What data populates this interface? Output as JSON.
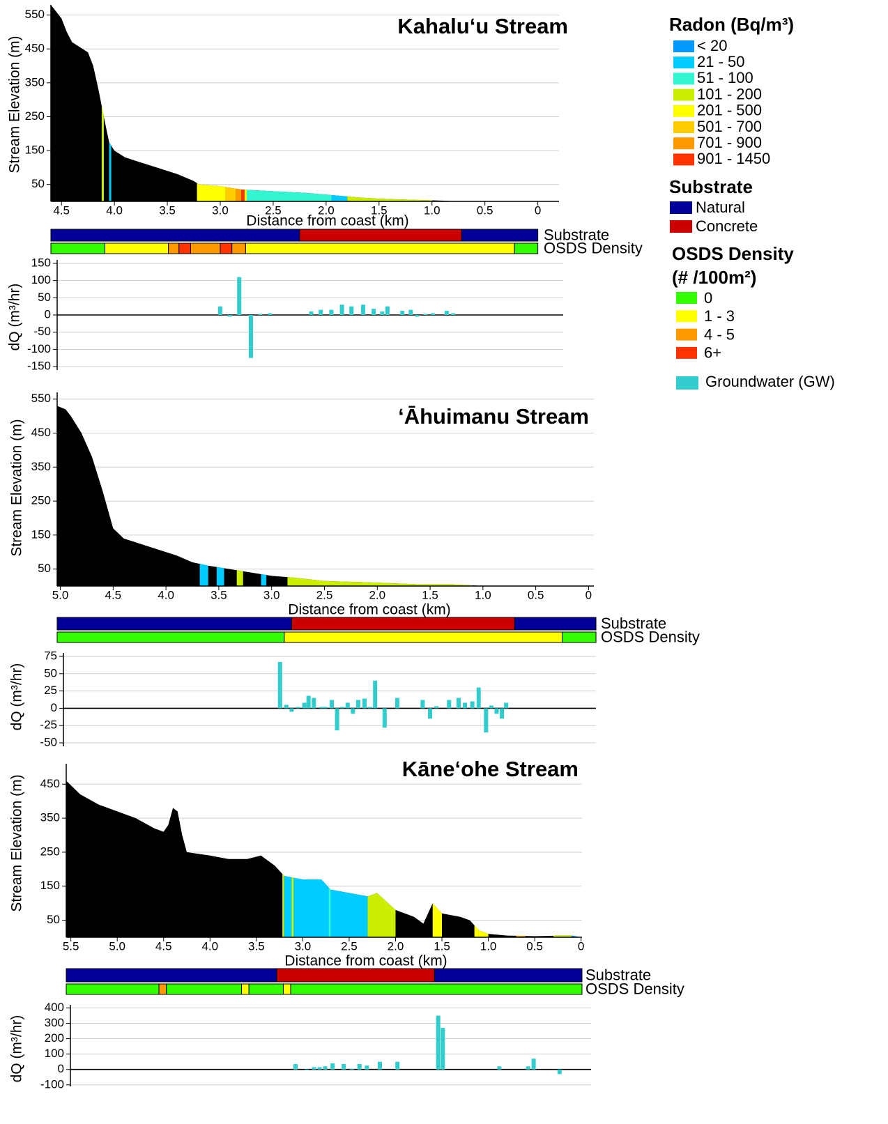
{
  "legend": {
    "radon": {
      "title": "Radon (Bq/m³)",
      "items": [
        {
          "label": "< 20",
          "color": "#0099ff"
        },
        {
          "label": "21 - 50",
          "color": "#00ccff"
        },
        {
          "label": "51 - 100",
          "color": "#33f5d0"
        },
        {
          "label": "101 - 200",
          "color": "#ccee00"
        },
        {
          "label": "201 - 500",
          "color": "#ffff00"
        },
        {
          "label": "501 - 700",
          "color": "#ffcc00"
        },
        {
          "label": "701 - 900",
          "color": "#ff9900"
        },
        {
          "label": "901 - 1450",
          "color": "#ff3300"
        }
      ]
    },
    "substrate": {
      "title": "Substrate",
      "items": [
        {
          "label": "Natural",
          "color": "#000099"
        },
        {
          "label": "Concrete",
          "color": "#cc0000"
        }
      ]
    },
    "osds": {
      "title": "OSDS Density",
      "subtitle": "(# /100m²)",
      "items": [
        {
          "label": "0",
          "color": "#33ff00"
        },
        {
          "label": "1 - 3",
          "color": "#ffff00"
        },
        {
          "label": "4 - 5",
          "color": "#ff9900"
        },
        {
          "label": "6+",
          "color": "#ff3300"
        }
      ]
    },
    "groundwater": {
      "label": "Groundwater (GW)",
      "color": "#33cccc"
    }
  },
  "chart_data": [
    {
      "type": "area",
      "title": "Kahaluʻu Stream",
      "xlabel": "Distance from coast (km)",
      "ylabel": "Stream Elevation (m)",
      "color": "#000000",
      "x": [
        4.6,
        4.55,
        4.5,
        4.45,
        4.4,
        4.3,
        4.25,
        4.2,
        4.15,
        4.1,
        4.05,
        4.0,
        3.9,
        3.8,
        3.6,
        3.4,
        3.25,
        3.2,
        3.0,
        2.8,
        2.5,
        2.2,
        2.0,
        1.7,
        1.5,
        1.2,
        1.0,
        0.8,
        0
      ],
      "values": [
        580,
        560,
        540,
        500,
        470,
        450,
        440,
        400,
        330,
        250,
        175,
        150,
        130,
        120,
        100,
        80,
        60,
        50,
        45,
        35,
        30,
        25,
        20,
        12,
        8,
        5,
        3,
        1,
        0
      ],
      "xlim": [
        4.6,
        -0.2
      ],
      "ylim": [
        0,
        580
      ],
      "xticks": [
        4.5,
        {
          "value": 4,
          "label": "4.0"
        },
        3.5,
        {
          "value": 3,
          "label": "3.0"
        },
        2.5,
        {
          "value": 2,
          "label": "2.0"
        },
        1.5,
        {
          "value": 1,
          "label": "1.0"
        },
        0.5,
        0
      ],
      "yticks": [
        50,
        150,
        250,
        350,
        450,
        550
      ],
      "grid": true,
      "radon": [
        {
          "from": 4.12,
          "to": 4.1,
          "color": "#ccee00"
        },
        {
          "from": 4.05,
          "to": 4.03,
          "color": "#00ccff"
        },
        {
          "from": 3.22,
          "to": 2.95,
          "color": "#ffff00"
        },
        {
          "from": 2.95,
          "to": 2.85,
          "color": "#ffcc00"
        },
        {
          "from": 2.85,
          "to": 2.8,
          "color": "#ff9900"
        },
        {
          "from": 2.8,
          "to": 2.77,
          "color": "#ff3300"
        },
        {
          "from": 2.77,
          "to": 2.75,
          "color": "#ffff00"
        },
        {
          "from": 2.75,
          "to": 1.95,
          "color": "#33f5d0"
        },
        {
          "from": 1.95,
          "to": 1.8,
          "color": "#00ccff"
        },
        {
          "from": 1.8,
          "to": 1.0,
          "color": "#ccee00"
        }
      ],
      "substrate": {
        "label": "Substrate",
        "segments": [
          {
            "from": 4.6,
            "to": 2.25,
            "color": "#000099"
          },
          {
            "from": 2.25,
            "to": 0.72,
            "color": "#cc0000"
          },
          {
            "from": 0.72,
            "to": 0,
            "color": "#000099"
          }
        ]
      },
      "osds": {
        "label": "OSDS Density",
        "segments": [
          {
            "from": 4.6,
            "to": 4.09,
            "color": "#33ff00"
          },
          {
            "from": 4.09,
            "to": 3.49,
            "color": "#ffff00"
          },
          {
            "from": 3.49,
            "to": 3.39,
            "color": "#ff9900"
          },
          {
            "from": 3.39,
            "to": 3.28,
            "color": "#ff3300"
          },
          {
            "from": 3.28,
            "to": 3.0,
            "color": "#ff9900"
          },
          {
            "from": 3.0,
            "to": 2.89,
            "color": "#ff3300"
          },
          {
            "from": 2.89,
            "to": 2.76,
            "color": "#ff9900"
          },
          {
            "from": 2.76,
            "to": 0.22,
            "color": "#ffff00"
          },
          {
            "from": 0.22,
            "to": 0,
            "color": "#33ff00"
          }
        ]
      }
    },
    {
      "type": "bar",
      "ylabel": "dQ (m³/hr)",
      "color": "#33cccc",
      "x": [
        3.0,
        2.91,
        2.82,
        2.71,
        2.62,
        2.53,
        2.14,
        2.05,
        1.95,
        1.85,
        1.76,
        1.65,
        1.55,
        1.47,
        1.42,
        1.28,
        1.2,
        1.14,
        1.06,
        0.99,
        0.86,
        0.8
      ],
      "values": [
        25,
        -5,
        110,
        -125,
        3,
        5,
        10,
        15,
        15,
        30,
        25,
        30,
        18,
        10,
        25,
        12,
        15,
        -5,
        3,
        5,
        12,
        5
      ],
      "xlim": [
        4.54,
        -0.24
      ],
      "ylim": [
        -160,
        160
      ],
      "yticks": [
        150,
        100,
        50,
        0,
        -50,
        -100,
        -150
      ],
      "grid": true
    },
    {
      "type": "area",
      "title": "ʻĀhuimanu Stream",
      "xlabel": "Distance from coast (km)",
      "ylabel": "Stream Elevation (m)",
      "color": "#000000",
      "x": [
        5.03,
        4.95,
        4.9,
        4.8,
        4.7,
        4.6,
        4.5,
        4.4,
        4.2,
        4.0,
        3.9,
        3.75,
        3.6,
        3.4,
        3.2,
        3.0,
        2.8,
        2.5,
        2.0,
        1.6,
        1.3,
        1.1,
        1.0,
        0
      ],
      "values": [
        530,
        520,
        500,
        450,
        380,
        280,
        170,
        140,
        120,
        100,
        90,
        70,
        60,
        50,
        40,
        30,
        25,
        15,
        10,
        5,
        5,
        2,
        0,
        0
      ],
      "xlim": [
        5.03,
        -0.05
      ],
      "ylim": [
        0,
        570
      ],
      "xticks": [
        {
          "value": 5,
          "label": "5.0"
        },
        4.5,
        {
          "value": 4,
          "label": "4.0"
        },
        3.5,
        {
          "value": 3,
          "label": "3.0"
        },
        2.5,
        {
          "value": 2,
          "label": "2.0"
        },
        1.5,
        {
          "value": 1,
          "label": "1.0"
        },
        0.5,
        0
      ],
      "yticks": [
        50,
        150,
        250,
        350,
        450,
        550
      ],
      "grid": true,
      "radon": [
        {
          "from": 3.68,
          "to": 3.6,
          "color": "#00ccff"
        },
        {
          "from": 3.52,
          "to": 3.45,
          "color": "#00ccff"
        },
        {
          "from": 3.33,
          "to": 3.27,
          "color": "#ccee00"
        },
        {
          "from": 3.1,
          "to": 3.05,
          "color": "#00ccff"
        },
        {
          "from": 2.85,
          "to": 1.1,
          "color": "#ccee00"
        }
      ],
      "substrate": {
        "label": "Substrate",
        "segments": [
          {
            "from": 5.03,
            "to": 2.81,
            "color": "#000099"
          },
          {
            "from": 2.81,
            "to": 0.7,
            "color": "#cc0000"
          },
          {
            "from": 0.7,
            "to": -0.07,
            "color": "#000099"
          }
        ]
      },
      "osds": {
        "label": "OSDS Density",
        "segments": [
          {
            "from": 5.03,
            "to": 2.88,
            "color": "#33ff00"
          },
          {
            "from": 2.88,
            "to": 0.25,
            "color": "#ffff00"
          },
          {
            "from": 0.25,
            "to": -0.07,
            "color": "#33ff00"
          }
        ]
      }
    },
    {
      "type": "bar",
      "ylabel": "dQ (m³/hr)",
      "color": "#33cccc",
      "x": [
        2.92,
        2.86,
        2.81,
        2.75,
        2.69,
        2.65,
        2.6,
        2.53,
        2.49,
        2.43,
        2.38,
        2.33,
        2.28,
        2.23,
        2.18,
        2.12,
        2.07,
        2.02,
        1.93,
        1.81,
        1.57,
        1.5,
        1.44,
        1.32,
        1.23,
        1.17,
        1.1,
        1.04,
        0.97,
        0.92,
        0.87,
        0.82,
        0.78
      ],
      "values": [
        67,
        5,
        -5,
        2,
        8,
        18,
        15,
        2,
        2,
        12,
        -32,
        2,
        8,
        -8,
        12,
        14,
        2,
        40,
        -28,
        15,
        12,
        -15,
        3,
        12,
        15,
        8,
        10,
        30,
        -35,
        4,
        -8,
        -15,
        8
      ],
      "xlim": [
        4.97,
        -0.07
      ],
      "ylim": [
        -55,
        80
      ],
      "yticks": [
        75,
        50,
        25,
        0,
        -25,
        -50
      ],
      "grid": true
    },
    {
      "type": "area",
      "title": "Kāneʻohe Stream",
      "xlabel": "Distance from coast (km)",
      "ylabel": "Stream Elevation (m)",
      "color": "#000000",
      "x": [
        5.55,
        5.4,
        5.2,
        5.0,
        4.8,
        4.6,
        4.5,
        4.45,
        4.4,
        4.35,
        4.3,
        4.25,
        4.0,
        3.8,
        3.6,
        3.45,
        3.3,
        3.2,
        3.0,
        2.8,
        2.7,
        2.5,
        2.3,
        2.2,
        2.0,
        1.9,
        1.8,
        1.7,
        1.6,
        1.5,
        1.3,
        1.2,
        1.1,
        1.0,
        0.8,
        0.5,
        0.2,
        0.1,
        0
      ],
      "values": [
        460,
        420,
        390,
        370,
        350,
        320,
        310,
        330,
        380,
        370,
        300,
        250,
        240,
        230,
        230,
        240,
        210,
        180,
        170,
        170,
        140,
        130,
        120,
        130,
        80,
        70,
        60,
        40,
        100,
        70,
        60,
        50,
        20,
        10,
        5,
        3,
        5,
        5,
        0
      ],
      "xlim": [
        5.55,
        -0.01
      ],
      "ylim": [
        0,
        510
      ],
      "xticks": [
        5.5,
        {
          "value": 5,
          "label": "5.0"
        },
        4.5,
        {
          "value": 4,
          "label": "4.0"
        },
        3.5,
        {
          "value": 3,
          "label": "3.0"
        },
        2.5,
        {
          "value": 2,
          "label": "2.0"
        },
        1.5,
        {
          "value": 1,
          "label": "1.0"
        },
        0.5,
        0
      ],
      "yticks": [
        50,
        150,
        250,
        350,
        450
      ],
      "grid": true,
      "radon": [
        {
          "from": 3.22,
          "to": 3.2,
          "color": "#ccee00"
        },
        {
          "from": 3.2,
          "to": 2.3,
          "color": "#00ccff"
        },
        {
          "from": 3.12,
          "to": 3.1,
          "color": "#ccee00"
        },
        {
          "from": 2.72,
          "to": 2.7,
          "color": "#33f5d0"
        },
        {
          "from": 2.3,
          "to": 2.0,
          "color": "#ccee00"
        },
        {
          "from": 1.6,
          "to": 1.5,
          "color": "#ffff00"
        },
        {
          "from": 1.15,
          "to": 1.0,
          "color": "#ffff00"
        },
        {
          "from": 0.7,
          "to": 0.6,
          "color": "#ff9900"
        },
        {
          "from": 0.3,
          "to": 0.1,
          "color": "#ccee00"
        },
        {
          "from": 0.1,
          "to": 0,
          "color": "#0099ff"
        }
      ],
      "substrate": {
        "label": "Substrate",
        "segments": [
          {
            "from": 5.55,
            "to": 3.28,
            "color": "#000099"
          },
          {
            "from": 3.28,
            "to": 1.58,
            "color": "#cc0000"
          },
          {
            "from": 1.58,
            "to": -0.01,
            "color": "#000099"
          }
        ]
      },
      "osds": {
        "label": "OSDS Density",
        "segments": [
          {
            "from": 5.55,
            "to": 4.55,
            "color": "#33ff00"
          },
          {
            "from": 4.55,
            "to": 4.47,
            "color": "#ff9900"
          },
          {
            "from": 4.47,
            "to": 3.66,
            "color": "#33ff00"
          },
          {
            "from": 3.66,
            "to": 3.58,
            "color": "#ffff00"
          },
          {
            "from": 3.58,
            "to": 3.21,
            "color": "#33ff00"
          },
          {
            "from": 3.21,
            "to": 3.13,
            "color": "#ffff00"
          },
          {
            "from": 3.13,
            "to": -0.01,
            "color": "#33ff00"
          }
        ]
      }
    },
    {
      "type": "bar",
      "ylabel": "dQ (m³/hr)",
      "color": "#33cccc",
      "x": [
        3.08,
        2.96,
        2.88,
        2.82,
        2.76,
        2.68,
        2.56,
        2.47,
        2.39,
        2.31,
        2.17,
        1.98,
        1.54,
        1.49,
        0.88,
        0.57,
        0.51,
        0.23
      ],
      "values": [
        35,
        -5,
        15,
        15,
        20,
        40,
        35,
        5,
        35,
        25,
        50,
        50,
        350,
        270,
        20,
        20,
        70,
        -30
      ],
      "xlim": [
        5.51,
        -0.11
      ],
      "ylim": [
        -110,
        420
      ],
      "yticks": [
        400,
        300,
        200,
        100,
        0,
        -100
      ],
      "grid": true
    }
  ]
}
